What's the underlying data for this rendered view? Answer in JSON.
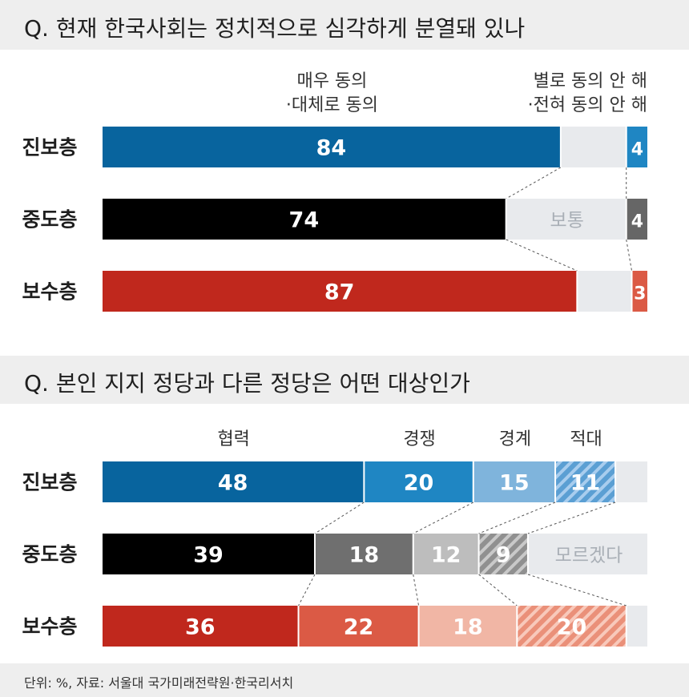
{
  "chart_data": [
    {
      "type": "bar",
      "stacked": true,
      "title": "Q. 현재 한국사회는 정치적으로 심각하게 분열돼 있나",
      "categories": [
        "진보층",
        "중도층",
        "보수층"
      ],
      "series": [
        {
          "name": "매우 동의 ·대체로 동의",
          "values": [
            84,
            74,
            87
          ],
          "color": "",
          "labels": [
            "84",
            "74",
            "87"
          ]
        },
        {
          "name": "보통",
          "values": [
            12,
            22,
            10
          ],
          "color": "#e8eaed",
          "labels": [
            "",
            "",
            ""
          ]
        },
        {
          "name": "별로 동의 안 해 ·전혀 동의 안 해",
          "values": [
            4,
            4,
            3
          ],
          "color": "",
          "labels": [
            "4",
            "4",
            "3"
          ]
        }
      ],
      "in_bar_label": "보통",
      "header_labels": [
        {
          "lines": [
            "매우 동의",
            "·대체로 동의"
          ]
        },
        {
          "lines": [
            "별로 동의 안 해",
            "·전혀 동의 안 해"
          ]
        }
      ],
      "xlim": [
        0,
        100
      ],
      "colors": {
        "진보층": [
          "#08649e",
          "#e8eaed",
          "#1f86c3"
        ],
        "중도층": [
          "#000000",
          "#e8eaed",
          "#666666"
        ],
        "보수층": [
          "#c0281d",
          "#e8eaed",
          "#db5a45"
        ]
      }
    },
    {
      "type": "bar",
      "stacked": true,
      "title": "Q. 본인 지지 정당과 다른 정당은 어떤 대상인가",
      "categories": [
        "진보층",
        "중도층",
        "보수층"
      ],
      "series": [
        {
          "name": "협력",
          "values": [
            48,
            39,
            36
          ],
          "labels": [
            "48",
            "39",
            "36"
          ]
        },
        {
          "name": "경쟁",
          "values": [
            20,
            18,
            22
          ],
          "labels": [
            "20",
            "18",
            "22"
          ]
        },
        {
          "name": "경계",
          "values": [
            15,
            12,
            18
          ],
          "labels": [
            "15",
            "12",
            "18"
          ]
        },
        {
          "name": "적대",
          "values": [
            11,
            9,
            20
          ],
          "labels": [
            "11",
            "9",
            "20"
          ]
        },
        {
          "name": "모르겠다",
          "values": [
            6,
            22,
            4
          ],
          "labels": [
            "",
            "",
            ""
          ]
        }
      ],
      "in_bar_label": "모르겠다",
      "header_labels": [
        {
          "lines": [
            "협력"
          ]
        },
        {
          "lines": [
            "경쟁"
          ]
        },
        {
          "lines": [
            "경계"
          ]
        },
        {
          "lines": [
            "적대"
          ]
        }
      ],
      "xlim": [
        0,
        100
      ],
      "colors": {
        "진보층": [
          "#08649e",
          "#1f86c3",
          "#7fb4dc",
          "#5b9fd3",
          "#e8eaed"
        ],
        "중도층": [
          "#000000",
          "#6f6f6f",
          "#bdbdbd",
          "#9a9a9a",
          "#e8eaed"
        ],
        "보수층": [
          "#c0281d",
          "#db5a45",
          "#f1b6a5",
          "#ea9079",
          "#e8eaed"
        ]
      },
      "hatched_series": "적대"
    }
  ],
  "footer": {
    "source": "단위: %, 자료: 서울대 국가미래전략원·한국리서치"
  }
}
